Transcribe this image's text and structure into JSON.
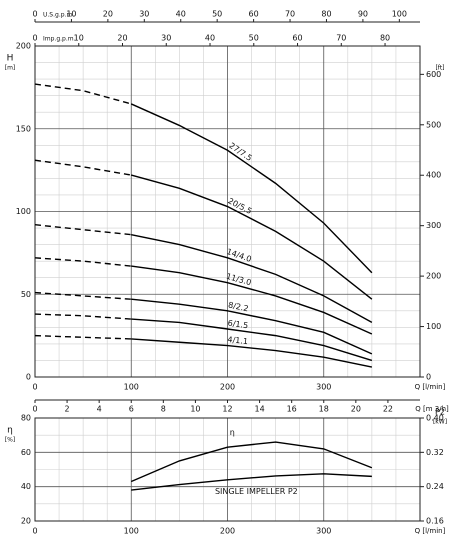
{
  "chart_data": [
    {
      "type": "line",
      "y_label": "H",
      "y_unit": "[m]",
      "y2_unit": "[ft]",
      "x_label": "Q [l/min]",
      "xlim": [
        0,
        400
      ],
      "xticks": [
        0,
        100,
        200,
        300
      ],
      "x_minor_ticks": [
        25,
        50,
        75,
        125,
        150,
        175,
        225,
        250,
        275,
        325,
        350,
        375
      ],
      "ylim": [
        0,
        200
      ],
      "yticks": [
        0,
        50,
        100,
        150,
        200
      ],
      "y_minor_ticks": [
        10,
        20,
        30,
        40,
        60,
        70,
        80,
        90,
        110,
        120,
        130,
        140,
        160,
        170,
        180,
        190
      ],
      "y2lim": [
        0,
        656.2
      ],
      "y2ticks": [
        0,
        100,
        200,
        300,
        400,
        500,
        600
      ],
      "grid": true,
      "dashed_until_x": 100,
      "x": [
        0,
        50,
        100,
        150,
        200,
        250,
        300,
        350
      ],
      "series": [
        {
          "name": "27/7.5",
          "color": "#000000",
          "values": [
            177,
            173,
            165,
            152,
            137,
            117,
            93,
            63
          ]
        },
        {
          "name": "20/5.5",
          "color": "#000000",
          "values": [
            131,
            127,
            122,
            114,
            103,
            88,
            70,
            47
          ]
        },
        {
          "name": "14/4.0",
          "color": "#000000",
          "values": [
            92,
            89,
            86,
            80,
            72,
            62,
            49,
            33
          ]
        },
        {
          "name": "11/3.0",
          "color": "#000000",
          "values": [
            72,
            70,
            67,
            63,
            57,
            49,
            39,
            26
          ]
        },
        {
          "name": "8/2.2",
          "color": "#000000",
          "values": [
            51,
            49,
            47,
            44,
            40,
            34,
            27,
            14
          ]
        },
        {
          "name": "6/1.5",
          "color": "#000000",
          "values": [
            38,
            37,
            35,
            33,
            29,
            25,
            19,
            10
          ]
        },
        {
          "name": "4/1.1",
          "color": "#000000",
          "values": [
            25,
            24,
            23,
            21,
            19,
            16,
            12,
            6
          ]
        }
      ],
      "top_axes": [
        {
          "label": "U.S.g.p.m.",
          "xlim": [
            0,
            105.67
          ],
          "xticks": [
            0,
            10,
            20,
            30,
            40,
            50,
            60,
            70,
            80,
            90,
            100
          ]
        },
        {
          "label": "Imp.g.p.m.",
          "xlim": [
            0,
            87.99
          ],
          "xticks": [
            0,
            10,
            20,
            30,
            40,
            50,
            60,
            70,
            80
          ]
        }
      ],
      "bottom_axis": {
        "label": "Q [m 3/h]",
        "xlim": [
          0,
          24
        ],
        "xticks": [
          0,
          2,
          4,
          6,
          8,
          10,
          12,
          14,
          16,
          18,
          20,
          22
        ]
      }
    },
    {
      "type": "line",
      "y_label": "η",
      "y_unit": "[%]",
      "y2_label": "P2",
      "y2_unit": "[kW]",
      "x_label": "Q [l/min]",
      "xlim": [
        0,
        400
      ],
      "xticks": [
        0,
        100,
        200,
        300
      ],
      "x_minor_ticks": [
        25,
        50,
        75,
        125,
        150,
        175,
        225,
        250,
        275,
        325,
        350,
        375
      ],
      "ylim": [
        20,
        80
      ],
      "yticks": [
        20,
        40,
        60,
        80
      ],
      "y_minor_ticks": [
        30,
        50,
        70
      ],
      "y2lim": [
        0.16,
        0.4
      ],
      "y2ticks": [
        0.16,
        0.24,
        0.32,
        {
          "value": 0.4,
          "label": "0.40"
        }
      ],
      "grid": true,
      "x": [
        100,
        150,
        200,
        250,
        300,
        350
      ],
      "series": [
        {
          "name": "η",
          "color": "#000000",
          "values": [
            43,
            55,
            63,
            66,
            62,
            51
          ]
        },
        {
          "name": "SINGLE IMPELLER P2",
          "color": "#000000",
          "axis": "y2",
          "values": [
            0.232,
            0.245,
            0.256,
            0.265,
            0.27,
            0.264
          ]
        }
      ]
    }
  ]
}
